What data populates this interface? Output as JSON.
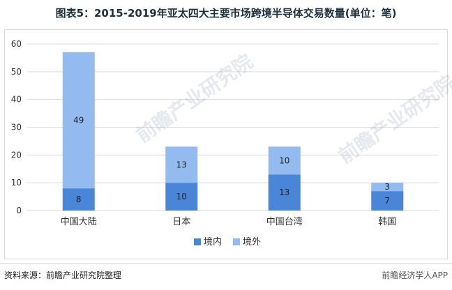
{
  "title": "图表5：2015-2019年亚太四大主要市场跨境半导体交易数量(单位：笔)",
  "source": "资料来源：前瞻产业研究院整理",
  "brand": "前瞻经济学人APP",
  "watermark": "前瞻产业研究院",
  "colors": {
    "inner": "#4a86d8",
    "outer": "#94bbef",
    "grid": "#d9d9d9",
    "axis_text": "#333333"
  },
  "chart_data": {
    "type": "bar",
    "stacked": true,
    "categories": [
      "中国大陆",
      "日本",
      "中国台湾",
      "韩国"
    ],
    "series": [
      {
        "name": "境内",
        "values": [
          8,
          10,
          13,
          7
        ]
      },
      {
        "name": "境外",
        "values": [
          49,
          13,
          10,
          3
        ]
      }
    ],
    "ylim": [
      0,
      60
    ],
    "yticks": [
      0,
      10,
      20,
      30,
      40,
      50,
      60
    ],
    "grid": true,
    "legend": "bottom-center"
  }
}
